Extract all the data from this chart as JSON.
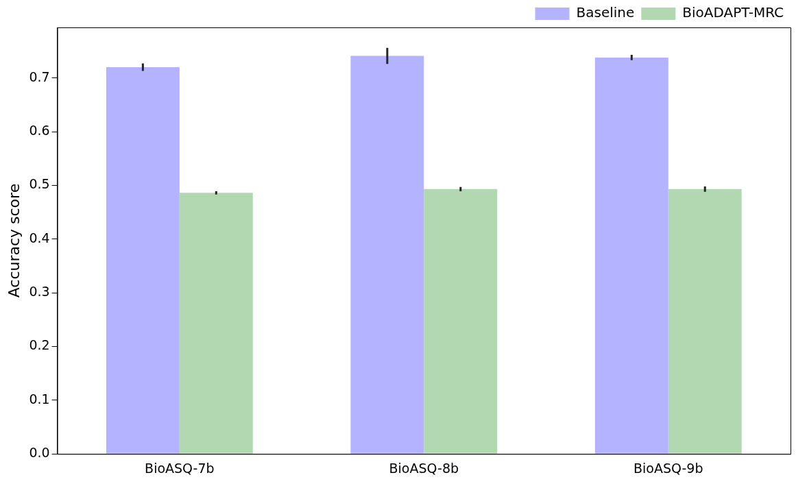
{
  "chart_data": {
    "type": "bar",
    "ylabel": "Accuracy score",
    "categories": [
      "BioASQ-7b",
      "BioASQ-8b",
      "BioASQ-9b"
    ],
    "series": [
      {
        "name": "Baseline",
        "color": "#b3b3ff",
        "values": [
          0.72,
          0.741,
          0.738
        ],
        "errors": [
          0.007,
          0.015,
          0.005
        ]
      },
      {
        "name": "BioADAPT-MRC",
        "color": "#b2d8b2",
        "values": [
          0.486,
          0.493,
          0.493
        ],
        "errors": [
          0.003,
          0.004,
          0.005
        ]
      }
    ],
    "ylim": [
      0,
      0.794
    ],
    "yticks": [
      {
        "value": 0,
        "label": "0.0"
      },
      0.1,
      0.2,
      0.3,
      0.4,
      0.5,
      0.6,
      0.7
    ],
    "grid": false,
    "legend": "top right"
  }
}
